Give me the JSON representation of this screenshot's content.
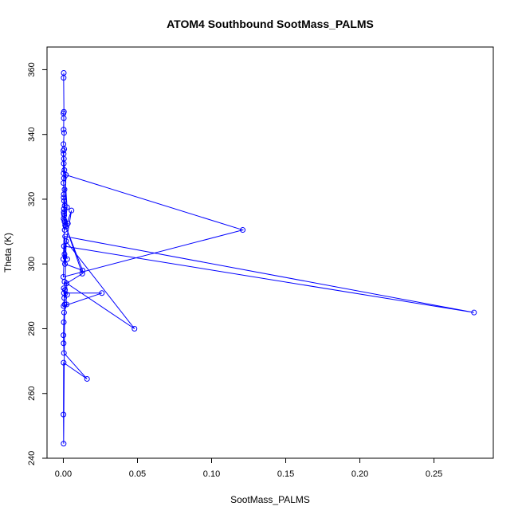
{
  "chart_data": {
    "type": "line",
    "title": "ATOM4 Southbound SootMass_PALMS",
    "xlabel": "SootMass_PALMS",
    "ylabel": "Theta (K)",
    "xlim": [
      -0.011,
      0.29
    ],
    "ylim": [
      240,
      367
    ],
    "xticks": [
      0.0,
      0.05,
      0.1,
      0.15,
      0.2,
      0.25
    ],
    "xtick_labels": [
      "0.00",
      "0.05",
      "0.10",
      "0.15",
      "0.20",
      "0.25"
    ],
    "yticks": [
      240,
      260,
      280,
      300,
      320,
      340,
      360
    ],
    "ytick_labels": [
      "240",
      "260",
      "280",
      "300",
      "320",
      "340",
      "360"
    ],
    "grid": false,
    "legend": "none",
    "series": [
      {
        "color": "#0000ff",
        "marker": "open-circle",
        "line": true,
        "x": [
          0.0003,
          0.0002,
          0.0004,
          0.0001,
          0.0003,
          0.0002,
          0.0005,
          0.0001,
          0.0006,
          0.0002,
          0.0004,
          0.0003,
          0.0007,
          0.0002,
          0.0004,
          0.0001,
          0.0008,
          0.0003,
          0.0002,
          0.0005,
          0.0009,
          0.0004,
          0.0003,
          0.0006,
          0.0002,
          0.0008,
          0.0012,
          0.0025,
          0.0,
          0.0004,
          0.0007,
          0.0031,
          0.0015,
          0.0009,
          0.0055,
          0.0,
          0.0018,
          0.121,
          0.0,
          0.0012,
          0.277,
          0.0004,
          0.0026,
          0.0008,
          0.0011,
          0.013,
          0.0013,
          0.0128,
          0.0022,
          0.0026,
          0.0006,
          0.0004,
          0.026,
          0.0002,
          0.0011,
          0.0019,
          0.048,
          0.0008,
          0.0022,
          0.0005,
          0.0003,
          0.0001,
          0.0002,
          0.0004,
          0.016,
          0.0002,
          0.0001,
          0.0002,
          0.0009,
          0.0003
        ],
        "y": [
          359.0,
          357.5,
          347.0,
          346.5,
          345.0,
          341.5,
          340.5,
          337.0,
          335.5,
          334.0,
          332.5,
          331.0,
          329.0,
          328.0,
          326.5,
          325.0,
          323.0,
          321.5,
          320.5,
          319.5,
          318.0,
          317.0,
          316.0,
          315.0,
          314.0,
          313.0,
          312.0,
          317.5,
          335.0,
          315.5,
          313.5,
          312.5,
          311.5,
          310.5,
          316.5,
          301.5,
          327.5,
          310.5,
          296.0,
          308.5,
          285.0,
          305.5,
          301.5,
          303.0,
          300.0,
          298.0,
          312.0,
          297.0,
          294.0,
          290.5,
          289.5,
          291.0,
          291.0,
          287.0,
          292.0,
          307.0,
          280.0,
          294.5,
          287.5,
          285.0,
          282.0,
          278.0,
          275.5,
          272.5,
          264.5,
          269.5,
          253.5,
          244.5,
          287.5,
          292.5
        ]
      }
    ]
  }
}
